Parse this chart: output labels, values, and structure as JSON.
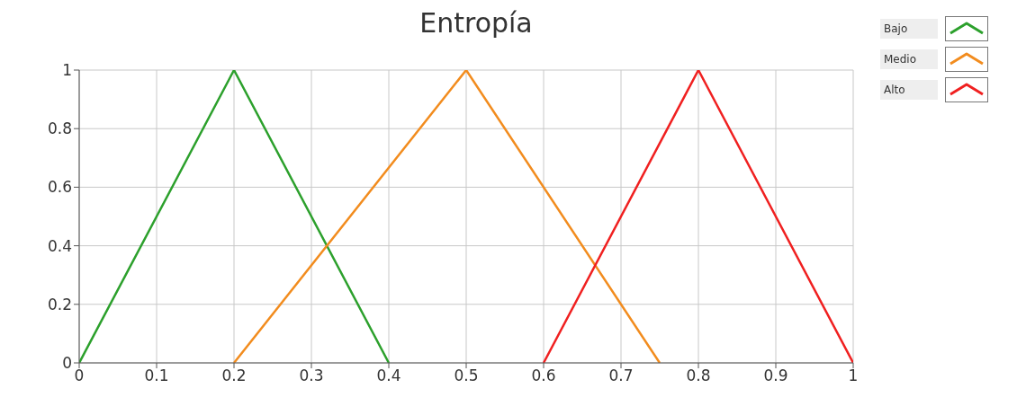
{
  "chart_data": {
    "type": "line",
    "title": "Entropía",
    "series": [
      {
        "name": "Bajo",
        "color": "#2ca02c",
        "x": [
          0,
          0.2,
          0.4
        ],
        "values": [
          0,
          1,
          0
        ]
      },
      {
        "name": "Medio",
        "color": "#f28c1e",
        "x": [
          0.2,
          0.5,
          0.75
        ],
        "values": [
          0,
          1,
          0
        ]
      },
      {
        "name": "Alto",
        "color": "#f02020",
        "x": [
          0.6,
          0.8,
          1
        ],
        "values": [
          0,
          1,
          0
        ]
      }
    ],
    "xlim": [
      0,
      1
    ],
    "xticks": [
      0,
      0.1,
      0.2,
      0.3,
      0.4,
      0.5,
      0.6,
      0.7,
      0.8,
      0.9,
      1
    ],
    "ylim": [
      0,
      1
    ],
    "yticks": [
      0,
      0.2,
      0.4,
      0.6,
      0.8,
      1
    ],
    "grid": true,
    "legend": "top right",
    "marker": "none",
    "line_style": "solid"
  }
}
